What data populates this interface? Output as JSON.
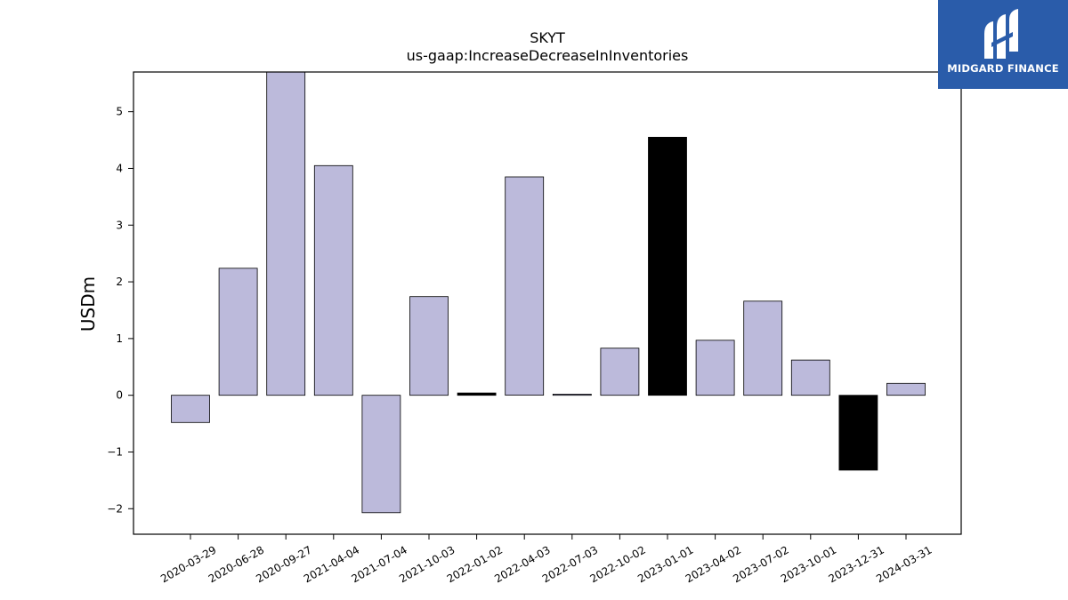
{
  "logo": {
    "text": "MIDGARD FINANCE"
  },
  "colors": {
    "bar_default": "#bcbadb",
    "bar_highlight": "#000000",
    "logo_bg": "#2a5caa"
  },
  "chart_data": {
    "type": "bar",
    "title": "SKYT",
    "subtitle": "us-gaap:IncreaseDecreaseInInventories",
    "xlabel": "",
    "ylabel": "USDm",
    "ylim": [
      -2.45,
      5.7
    ],
    "yticks": [
      -2,
      -1,
      0,
      1,
      2,
      3,
      4,
      5
    ],
    "ytick_labels": [
      "−2",
      "−1",
      "0",
      "1",
      "2",
      "3",
      "4",
      "5"
    ],
    "grid": false,
    "categories": [
      "2020-03-29",
      "2020-06-28",
      "2020-09-27",
      "2021-04-04",
      "2021-07-04",
      "2021-10-03",
      "2022-01-02",
      "2022-04-03",
      "2022-07-03",
      "2022-10-02",
      "2023-01-01",
      "2023-04-02",
      "2023-07-02",
      "2023-10-01",
      "2023-12-31",
      "2024-03-31"
    ],
    "values": [
      -0.48,
      2.24,
      5.8,
      4.05,
      -2.07,
      1.74,
      0.04,
      3.85,
      0.02,
      0.83,
      4.55,
      0.97,
      1.66,
      0.62,
      -1.32,
      0.21
    ],
    "highlight": [
      false,
      false,
      false,
      false,
      false,
      false,
      true,
      false,
      false,
      false,
      true,
      false,
      false,
      false,
      true,
      false
    ]
  }
}
